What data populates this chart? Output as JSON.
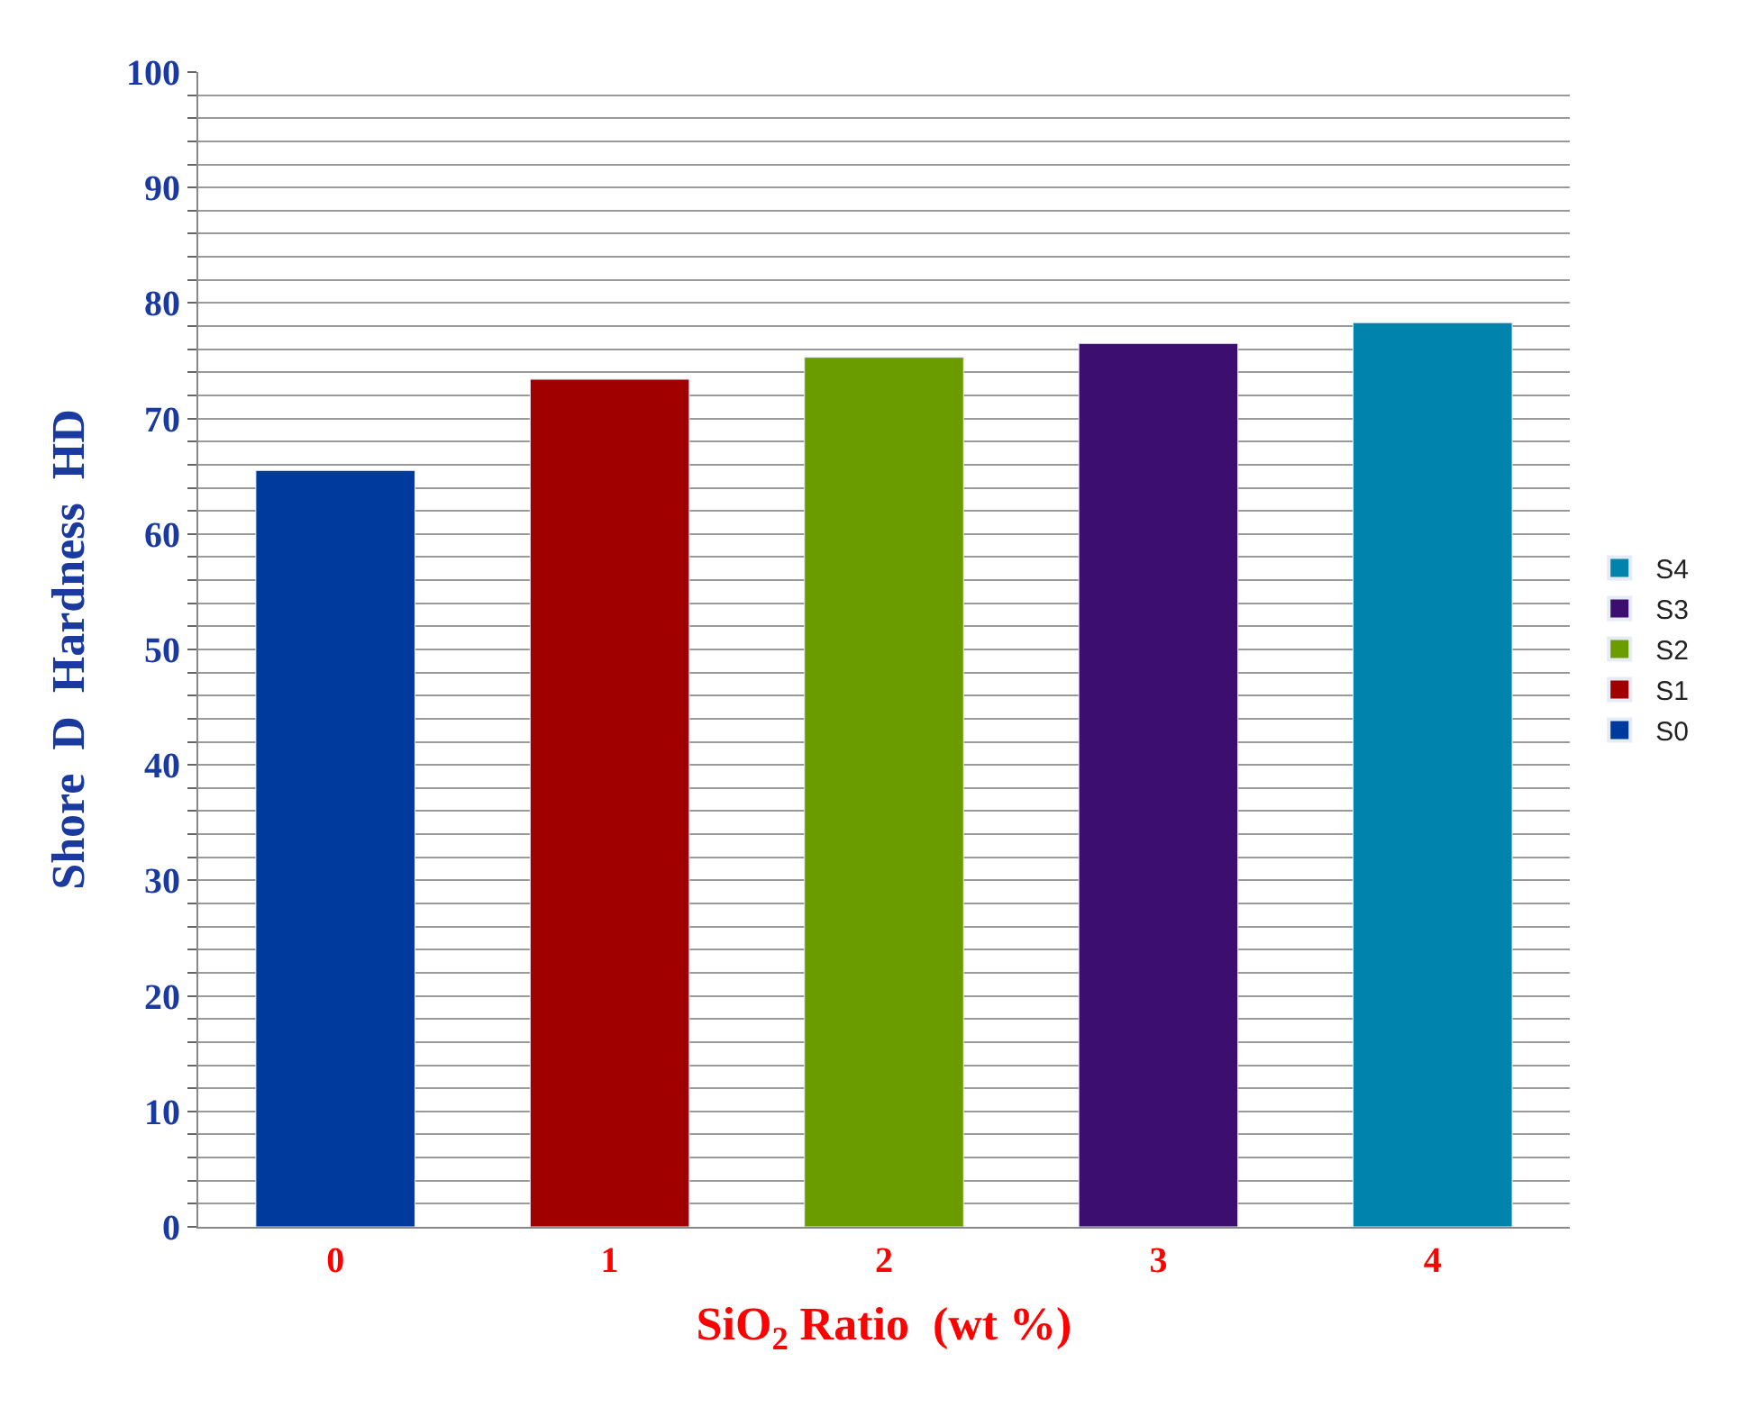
{
  "chart_data": {
    "type": "bar",
    "xlabel": "SiO$_{2}$ Ratio  (wt %)",
    "ylabel": "Shore  D  Hardness  HD",
    "categories": [
      "0",
      "1",
      "2",
      "3",
      "4"
    ],
    "series": [
      {
        "name": "S0",
        "color": "#003a9c",
        "values": [
          65.5,
          null,
          null,
          null,
          null
        ]
      },
      {
        "name": "S1",
        "color": "#a00000",
        "values": [
          null,
          73.4,
          null,
          null,
          null
        ]
      },
      {
        "name": "S2",
        "color": "#6a9c00",
        "values": [
          null,
          null,
          75.3,
          null,
          null
        ]
      },
      {
        "name": "S3",
        "color": "#3c0e70",
        "values": [
          null,
          null,
          null,
          76.5,
          null
        ]
      },
      {
        "name": "S4",
        "color": "#0084ae",
        "values": [
          null,
          null,
          null,
          null,
          78.3
        ]
      }
    ],
    "ylim": [
      0,
      100
    ],
    "yticks": [
      0,
      {
        "value": 2,
        "label": null
      },
      {
        "value": 4,
        "label": null
      },
      {
        "value": 6,
        "label": null
      },
      {
        "value": 8,
        "label": null
      },
      10,
      {
        "value": 12,
        "label": null
      },
      {
        "value": 14,
        "label": null
      },
      {
        "value": 16,
        "label": null
      },
      {
        "value": 18,
        "label": null
      },
      20,
      {
        "value": 22,
        "label": null
      },
      {
        "value": 24,
        "label": null
      },
      {
        "value": 26,
        "label": null
      },
      {
        "value": 28,
        "label": null
      },
      30,
      {
        "value": 32,
        "label": null
      },
      {
        "value": 34,
        "label": null
      },
      {
        "value": 36,
        "label": null
      },
      {
        "value": 38,
        "label": null
      },
      40,
      {
        "value": 42,
        "label": null
      },
      {
        "value": 44,
        "label": null
      },
      {
        "value": 46,
        "label": null
      },
      {
        "value": 48,
        "label": null
      },
      50,
      {
        "value": 52,
        "label": null
      },
      {
        "value": 54,
        "label": null
      },
      {
        "value": 56,
        "label": null
      },
      {
        "value": 58,
        "label": null
      },
      60,
      {
        "value": 62,
        "label": null
      },
      {
        "value": 64,
        "label": null
      },
      {
        "value": 66,
        "label": null
      },
      {
        "value": 68,
        "label": null
      },
      70,
      {
        "value": 72,
        "label": null
      },
      {
        "value": 74,
        "label": null
      },
      {
        "value": 76,
        "label": null
      },
      {
        "value": 78,
        "label": null
      },
      80,
      {
        "value": 82,
        "label": null
      },
      {
        "value": 84,
        "label": null
      },
      {
        "value": 86,
        "label": null
      },
      {
        "value": 88,
        "label": null
      },
      90,
      {
        "value": 92,
        "label": null
      },
      {
        "value": 94,
        "label": null
      },
      {
        "value": 96,
        "label": null
      },
      {
        "value": 98,
        "label": null
      },
      100
    ],
    "grid": "y",
    "legend": "right"
  }
}
